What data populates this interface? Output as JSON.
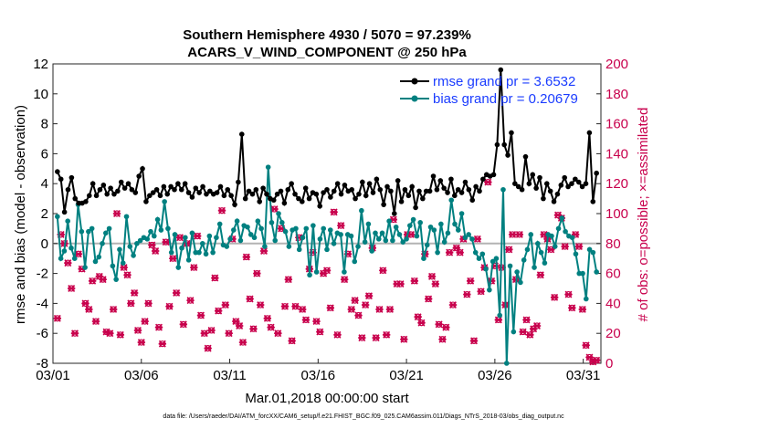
{
  "chart_data": {
    "type": "line",
    "title_line1": "Southern Hemisphere 4930 / 5070 = 97.239%",
    "title_line2": "ACARS_V_WIND_COMPONENT @ 250 hPa",
    "xlabel": "Mar.01,2018 00:00:00 start",
    "ylabel": "rmse and bias (model - observation)",
    "y2label": "# of obs: o=possible; ×=assimilated",
    "x_tick_labels": [
      "03/01",
      "03/06",
      "03/11",
      "03/16",
      "03/21",
      "03/26",
      "03/31"
    ],
    "x_tick_days": [
      1,
      6,
      11,
      16,
      21,
      26,
      31
    ],
    "xlim": [
      1,
      32
    ],
    "ylim": [
      -8,
      12
    ],
    "y_ticks": [
      -8,
      -6,
      -4,
      -2,
      0,
      2,
      4,
      6,
      8,
      10,
      12
    ],
    "y2lim": [
      0,
      200
    ],
    "y2_ticks": [
      0,
      20,
      40,
      60,
      80,
      100,
      120,
      140,
      160,
      180,
      200
    ],
    "footnote": "data file: /Users/raeder/DAI/ATM_forcXX/CAM6_setup/f.e21.FHIST_BGC.f09_025.CAM6assim.011/Diags_NTrS_2018-03/obs_diag_output.nc",
    "series": [
      {
        "name": "rmse",
        "legend": "rmse grand pr = 3.6532",
        "color": "#000000",
        "values": [
          4.8,
          4.3,
          2.1,
          3.6,
          4.4,
          3.0,
          2.7,
          2.7,
          2.8,
          3.2,
          4.0,
          3.2,
          3.6,
          3.9,
          3.3,
          3.7,
          3.3,
          3.5,
          4.1,
          3.7,
          4.0,
          3.6,
          3.4,
          4.5,
          5.0,
          2.8,
          3.2,
          3.4,
          3.6,
          3.2,
          3.8,
          3.3,
          3.8,
          3.6,
          4.0,
          3.6,
          4.0,
          3.4,
          3.1,
          3.7,
          3.4,
          3.8,
          3.3,
          3.5,
          3.3,
          3.4,
          3.8,
          3.2,
          3.6,
          3.2,
          2.6,
          4.1,
          7.3,
          3.0,
          3.5,
          3.3,
          3.6,
          2.8,
          3.7,
          3.3,
          3.0,
          2.9,
          3.3,
          3.5,
          2.7,
          3.6,
          4.0,
          3.3,
          3.0,
          2.8,
          3.7,
          3.0,
          3.4,
          3.3,
          2.5,
          3.4,
          3.6,
          3.1,
          3.5,
          4.0,
          3.3,
          3.9,
          3.5,
          3.6,
          3.0,
          3.3,
          4.1,
          3.2,
          4.0,
          3.4,
          4.3,
          3.6,
          2.6,
          3.8,
          3.5,
          2.0,
          4.2,
          2.8,
          3.6,
          3.2,
          3.8,
          2.4,
          3.5,
          3.0,
          3.5,
          3.5,
          4.5,
          3.6,
          4.2,
          3.7,
          3.4,
          4.3,
          3.2,
          3.6,
          3.4,
          4.1,
          3.6,
          2.9,
          3.8,
          3.5,
          4.3,
          4.6,
          4.5,
          4.6,
          6.6,
          11.6,
          6.6,
          5.9,
          7.4,
          4.0,
          3.8,
          3.6,
          5.8,
          4.0,
          4.6,
          3.7,
          4.4,
          3.0,
          4.0,
          3.5,
          2.8,
          3.3,
          3.9,
          4.4,
          3.8,
          4.0,
          4.3,
          4.1,
          3.8,
          4.0,
          7.4,
          2.8,
          4.7
        ]
      },
      {
        "name": "bias",
        "legend": "bias grand pr = 0.20679",
        "color": "#008080",
        "values": [
          1.8,
          -1.0,
          -0.5,
          1.5,
          -0.3,
          -1.0,
          2.6,
          0.8,
          -1.6,
          0.8,
          1.0,
          -1.2,
          -0.9,
          0.0,
          0.7,
          1.0,
          -1.5,
          -2.4,
          -0.4,
          -1.3,
          1.8,
          -0.2,
          -0.8,
          0.0,
          0.2,
          0.4,
          0.3,
          0.8,
          0.5,
          1.6,
          0.9,
          2.8,
          1.0,
          -0.6,
          0.6,
          -1.6,
          -0.3,
          0.4,
          -1.1,
          0.7,
          -0.6,
          -0.6,
          0.0,
          -0.7,
          0.5,
          -0.6,
          0.4,
          1.3,
          -0.1,
          -0.2,
          0.3,
          0.9,
          1.5,
          0.2,
          1.2,
          1.1,
          0.6,
          0.4,
          1.5,
          1.0,
          -0.2,
          5.1,
          1.4,
          0.2,
          2.0,
          1.4,
          0.8,
          -0.2,
          0.9,
          1.0,
          -0.4,
          0.4,
          1.0,
          -2.1,
          1.2,
          -1.9,
          0.3,
          1.0,
          -0.4,
          0.9,
          0.0,
          0.7,
          0.6,
          -1.9,
          0.6,
          0.5,
          -1.2,
          -0.2,
          2.2,
          0.1,
          1.3,
          -0.5,
          0.7,
          0.3,
          0.7,
          0.2,
          1.5,
          0.2,
          1.1,
          0.6,
          0.1,
          0.3,
          1.2,
          1.6,
          0.5,
          1.4,
          -1.0,
          -0.1,
          1.1,
          0.9,
          -0.6,
          1.3,
          0.1,
          0.7,
          2.9,
          1.3,
          0.9,
          2.0,
          0.4,
          0.6,
          0.3,
          -0.6,
          -1.0,
          -0.7,
          -1.7,
          -3.1,
          -1.2,
          -1.0,
          -4.8,
          3.6,
          -8.0,
          -1.5,
          -5.9,
          -1.9,
          -2.6,
          -1.1,
          -0.4,
          0.6,
          -1.6,
          0.0,
          -0.6,
          -1.3,
          0.6,
          0.5,
          -0.2,
          1.0,
          1.7,
          0.8,
          0.5,
          0.4,
          -0.7,
          -2.0,
          -2.0,
          -3.7,
          -0.4,
          -0.6,
          -1.9
        ]
      },
      {
        "name": "obs_possible",
        "marker": "o",
        "color": "#c8004c",
        "values": [
          30,
          86,
          80,
          67,
          50,
          20,
          73,
          63,
          40,
          36,
          55,
          28,
          58,
          56,
          21,
          20,
          36,
          100,
          19,
          64,
          59,
          40,
          47,
          22,
          14,
          28,
          40,
          79,
          75,
          24,
          13,
          81,
          38,
          70,
          47,
          84,
          26,
          80,
          42,
          64,
          85,
          32,
          20,
          10,
          22,
          57,
          35,
          102,
          39,
          20,
          83,
          28,
          25,
          14,
          71,
          43,
          23,
          60,
          39,
          75,
          30,
          24,
          103,
          20,
          90,
          38,
          56,
          15,
          38,
          84,
          36,
          29,
          63,
          74,
          28,
          21,
          60,
          62,
          37,
          101,
          19,
          92,
          56,
          73,
          36,
          42,
          32,
          17,
          39,
          45,
          77,
          17,
          36,
          62,
          19,
          36,
          96,
          53,
          53,
          16,
          86,
          86,
          55,
          31,
          27,
          73,
          43,
          58,
          53,
          26,
          16,
          24,
          74,
          39,
          77,
          74,
          83,
          46,
          55,
          15,
          83,
          48,
          64,
          121,
          55,
          65,
          29,
          64,
          39,
          76,
          86,
          56,
          86,
          21,
          29,
          19,
          23,
          25,
          59,
          86,
          83,
          76,
          44,
          99,
          97,
          78,
          46,
          37,
          86,
          78,
          36,
          12,
          4,
          1,
          2
        ]
      },
      {
        "name": "obs_assimilated",
        "marker": "x",
        "color": "#c8004c",
        "values": [
          30,
          86,
          80,
          67,
          50,
          20,
          73,
          63,
          40,
          36,
          55,
          28,
          58,
          56,
          21,
          20,
          36,
          100,
          19,
          64,
          59,
          40,
          47,
          22,
          14,
          28,
          40,
          79,
          75,
          24,
          13,
          81,
          38,
          70,
          47,
          84,
          26,
          80,
          42,
          64,
          85,
          32,
          20,
          10,
          22,
          57,
          35,
          102,
          39,
          20,
          83,
          28,
          25,
          14,
          71,
          43,
          23,
          60,
          39,
          75,
          30,
          24,
          103,
          20,
          90,
          38,
          56,
          15,
          38,
          84,
          36,
          29,
          63,
          74,
          28,
          21,
          60,
          62,
          37,
          101,
          19,
          92,
          56,
          73,
          36,
          42,
          32,
          17,
          39,
          45,
          77,
          17,
          36,
          62,
          19,
          36,
          96,
          53,
          53,
          16,
          86,
          86,
          55,
          31,
          27,
          73,
          43,
          58,
          53,
          26,
          16,
          24,
          74,
          39,
          77,
          74,
          83,
          46,
          55,
          15,
          83,
          48,
          64,
          121,
          55,
          65,
          29,
          64,
          39,
          76,
          86,
          56,
          86,
          21,
          29,
          19,
          23,
          25,
          59,
          86,
          83,
          76,
          44,
          99,
          97,
          78,
          46,
          37,
          86,
          78,
          36,
          12,
          4,
          1,
          2
        ]
      }
    ]
  }
}
